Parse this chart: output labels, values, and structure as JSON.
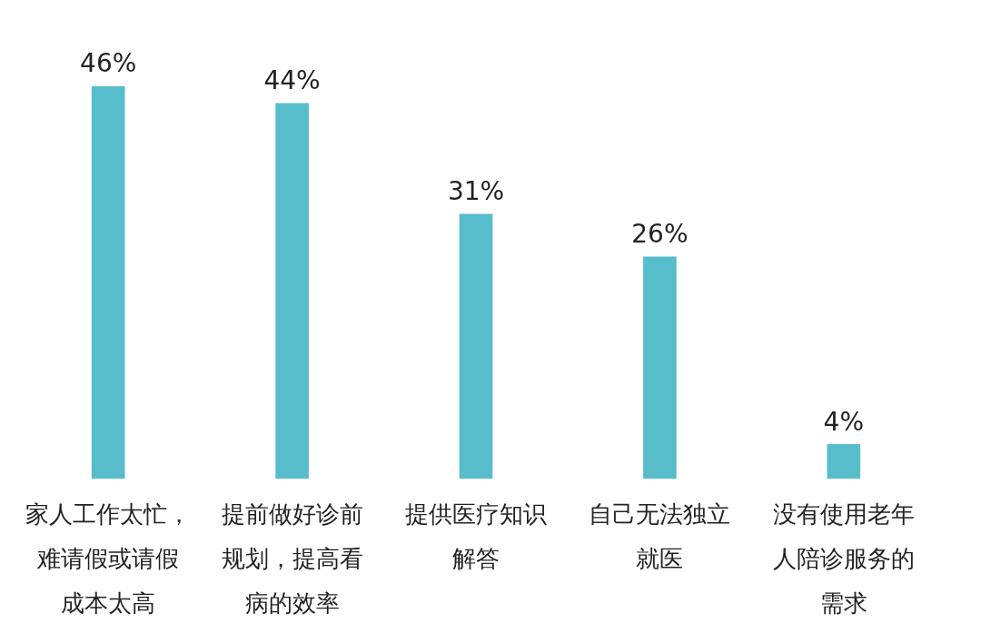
{
  "chart_data": {
    "type": "bar",
    "categories": [
      "家人工作太忙，难请假或请假成本太高",
      "提前做好诊前规划，提高看病的效率",
      "提供医疗知识解答",
      "自己无法独立就医",
      "没有使用老年人陪诊服务的需求"
    ],
    "values": [
      46,
      44,
      31,
      26,
      4
    ],
    "value_labels": [
      "46%",
      "44%",
      "31%",
      "26%",
      "4%"
    ],
    "color": "#58bdcb",
    "tick_labels": "x"
  }
}
